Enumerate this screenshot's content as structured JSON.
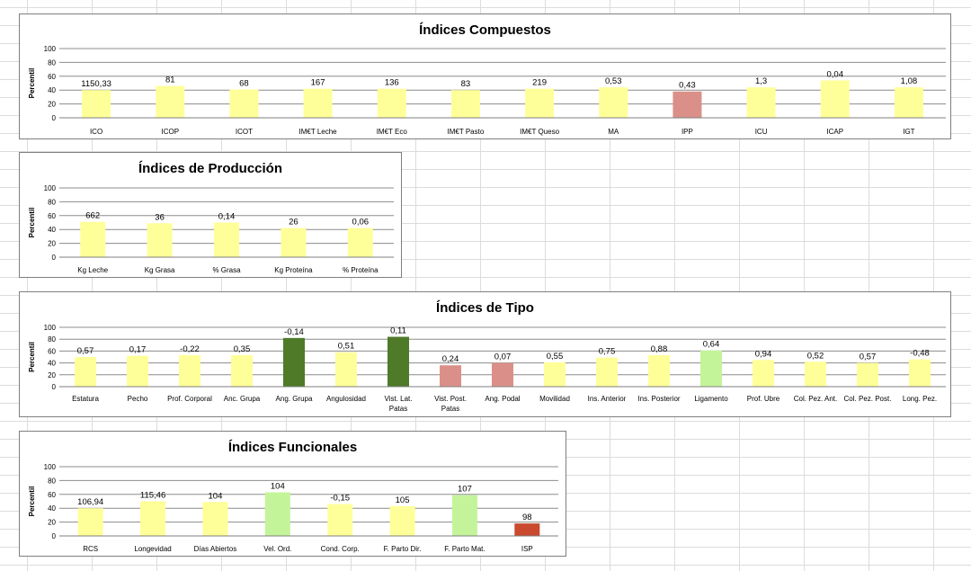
{
  "chart_data": [
    {
      "type": "bar",
      "title": "Índices Compuestos",
      "ylabel": "Percentil",
      "ylim": [
        0,
        100
      ],
      "yticks": [
        "0",
        "20",
        "40",
        "60",
        "80",
        "100"
      ],
      "categories": [
        "ICO",
        "ICOP",
        "ICOT",
        "IM€T Leche",
        "IM€T Eco",
        "IM€T Pasto",
        "IM€T Queso",
        "MA",
        "IPP",
        "ICU",
        "ICAP",
        "IGT"
      ],
      "values": [
        40,
        46,
        41,
        42,
        42,
        40,
        42,
        44,
        38,
        44,
        54,
        44
      ],
      "data_labels": [
        "1150,33",
        "81",
        "68",
        "167",
        "136",
        "83",
        "219",
        "0,53",
        "0,43",
        "1,3",
        "0,04",
        "1,08"
      ],
      "colors": [
        "#ffff99",
        "#ffff99",
        "#ffff99",
        "#ffff99",
        "#ffff99",
        "#ffff99",
        "#ffff99",
        "#ffff99",
        "#da9088",
        "#ffff99",
        "#ffff99",
        "#ffff99"
      ],
      "grid": true
    },
    {
      "type": "bar",
      "title": "Índices de Producción",
      "ylabel": "Percentil",
      "ylim": [
        0,
        100
      ],
      "yticks": [
        "0",
        "20",
        "40",
        "60",
        "80",
        "100"
      ],
      "categories": [
        "Kg Leche",
        "Kg Grasa",
        "% Grasa",
        "Kg Proteína",
        "% Proteína"
      ],
      "values": [
        51,
        49,
        50,
        42,
        42
      ],
      "data_labels": [
        "662",
        "36",
        "0,14",
        "26",
        "0,06"
      ],
      "colors": [
        "#ffff99",
        "#ffff99",
        "#ffff99",
        "#ffff99",
        "#ffff99"
      ],
      "grid": true
    },
    {
      "type": "bar",
      "title": "Índices de Tipo",
      "ylabel": "Percentil",
      "ylim": [
        0,
        100
      ],
      "yticks": [
        "0",
        "20",
        "40",
        "60",
        "80",
        "100"
      ],
      "categories": [
        "Estatura",
        "Pecho",
        "Prof. Corporal",
        "Anc. Grupa",
        "Ang. Grupa",
        "Angulosidad",
        "Vist. Lat. Patas",
        "Vist. Post. Patas",
        "Ang. Podal",
        "Movilidad",
        "Ins. Anterior",
        "Ins. Posterior",
        "Ligamento",
        "Prof. Ubre",
        "Col. Pez. Ant.",
        "Col. Pez. Post.",
        "Long. Pez."
      ],
      "values": [
        50,
        52,
        53,
        53,
        82,
        58,
        84,
        36,
        40,
        41,
        49,
        53,
        61,
        45,
        42,
        40,
        46
      ],
      "data_labels": [
        "0,57",
        "0,17",
        "-0,22",
        "0,35",
        "-0,14",
        "0,51",
        "0,11",
        "0,24",
        "0,07",
        "0,55",
        "0,75",
        "0,88",
        "0,64",
        "0,94",
        "0,52",
        "0,57",
        "-0,48"
      ],
      "colors": [
        "#ffff99",
        "#ffff99",
        "#ffff99",
        "#ffff99",
        "#4f7a28",
        "#ffff99",
        "#4f7a28",
        "#da9088",
        "#da9088",
        "#ffff99",
        "#ffff99",
        "#ffff99",
        "#c4f49a",
        "#ffff99",
        "#ffff99",
        "#ffff99",
        "#ffff99"
      ],
      "grid": true
    },
    {
      "type": "bar",
      "title": "Índices Funcionales",
      "ylabel": "Percentil",
      "ylim": [
        0,
        100
      ],
      "yticks": [
        "0",
        "20",
        "40",
        "60",
        "80",
        "100"
      ],
      "categories": [
        "RCS",
        "Longevidad",
        "Días Abiertos",
        "Vel. Ord.",
        "Cond. Corp.",
        "F. Parto Dir.",
        "F. Parto Mat.",
        "ISP"
      ],
      "values": [
        40,
        50,
        49,
        63,
        46,
        43,
        59,
        18
      ],
      "data_labels": [
        "106,94",
        "115,46",
        "104",
        "104",
        "-0,15",
        "105",
        "107",
        "98"
      ],
      "colors": [
        "#ffff99",
        "#ffff99",
        "#ffff99",
        "#c4f49a",
        "#ffff99",
        "#ffff99",
        "#c4f49a",
        "#c94a2e"
      ],
      "grid": true
    }
  ]
}
